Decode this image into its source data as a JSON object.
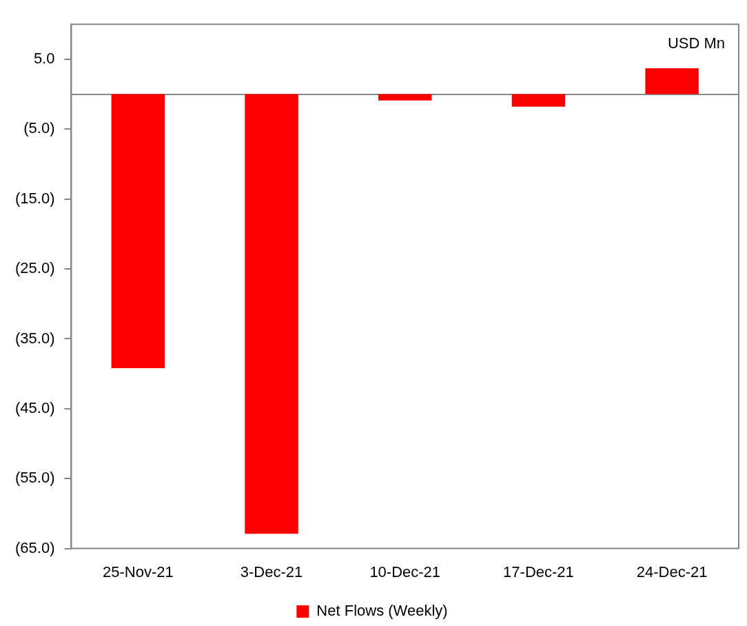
{
  "chart_data": {
    "type": "bar",
    "categories": [
      "25-Nov-21",
      "3-Dec-21",
      "10-Dec-21",
      "17-Dec-21",
      "24-Dec-21"
    ],
    "series": [
      {
        "name": "Net Flows (Weekly)",
        "color": "#ff0000",
        "values": [
          -39.2,
          -62.9,
          -0.9,
          -1.8,
          3.7
        ]
      }
    ],
    "ylim": [
      -65,
      10
    ],
    "yticks": [
      {
        "value": 5,
        "label": "5.0"
      },
      {
        "value": -5,
        "label": "(5.0)"
      },
      {
        "value": -15,
        "label": "(15.0)"
      },
      {
        "value": -25,
        "label": "(25.0)"
      },
      {
        "value": -35,
        "label": "(35.0)"
      },
      {
        "value": -45,
        "label": "(45.0)"
      },
      {
        "value": -55,
        "label": "(55.0)"
      },
      {
        "value": -65,
        "label": "(65.0)"
      }
    ],
    "annotations": [
      "USD Mn"
    ],
    "grid": false,
    "legend": "bottom"
  }
}
